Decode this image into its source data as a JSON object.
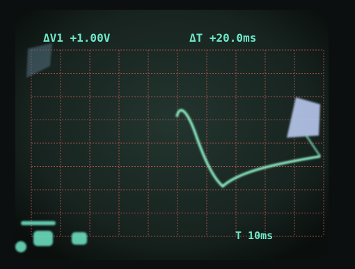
{
  "readouts": {
    "delta_v": "ΔV1 +1.00V",
    "delta_t": "ΔT +20.0ms",
    "timebase": "T 10ms"
  }
}
